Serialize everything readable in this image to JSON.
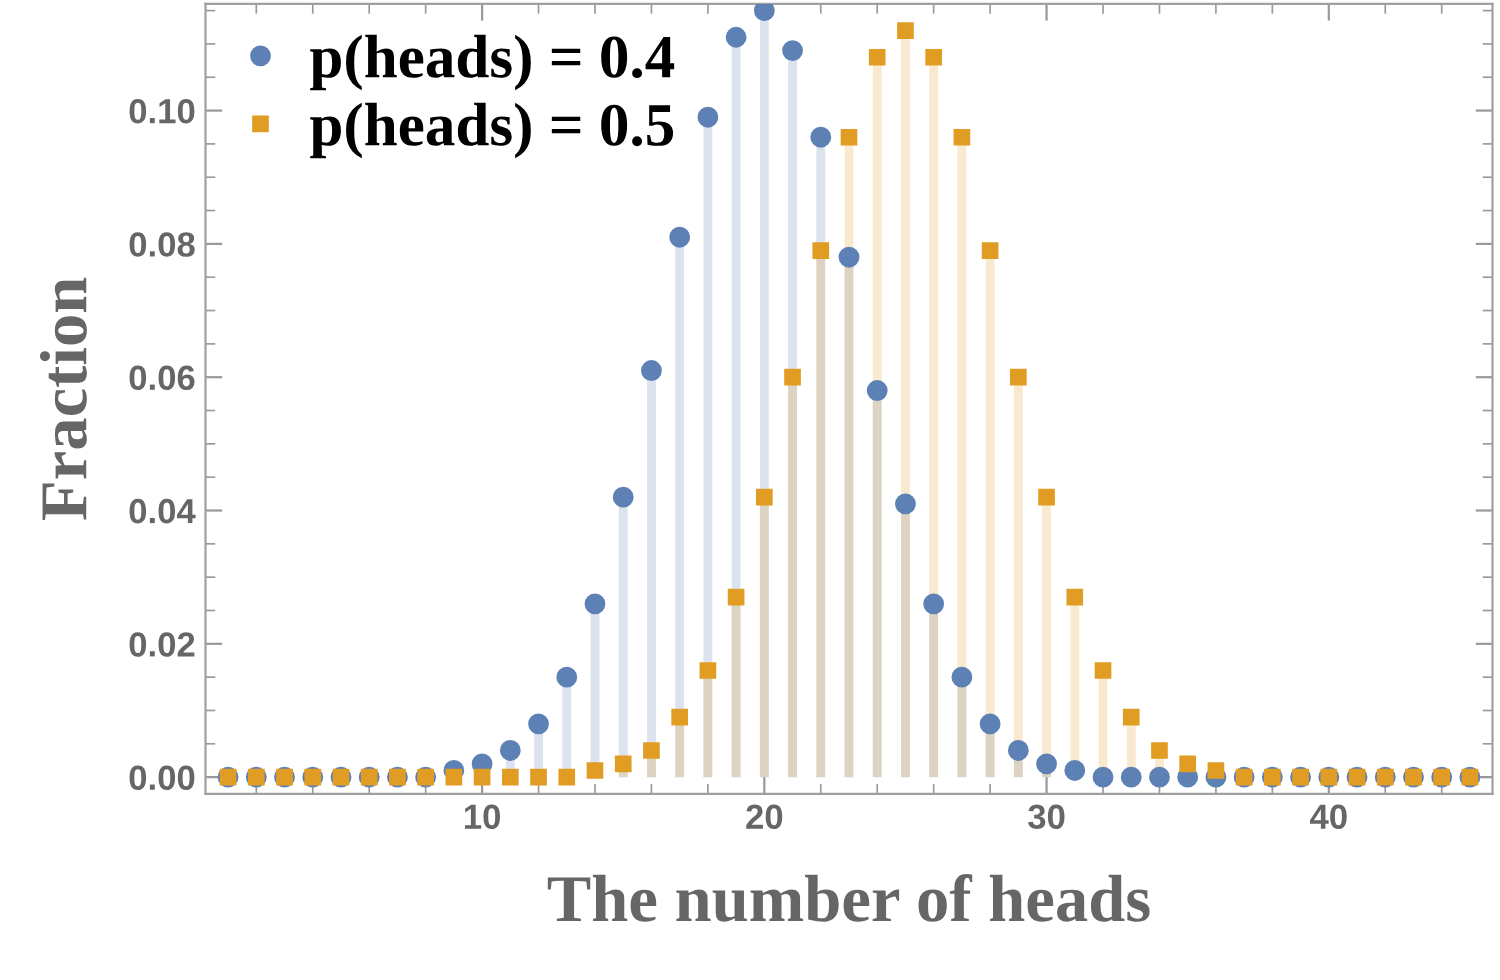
{
  "chart_data": {
    "type": "lollipop",
    "xlabel": "The number of heads",
    "ylabel": "Fraction",
    "xlim": [
      0.2,
      45.8
    ],
    "ylim": [
      -0.0025,
      0.116
    ],
    "xticks": [
      10,
      20,
      30,
      40
    ],
    "yticks": [
      {
        "value": 0,
        "label": "0.00"
      },
      {
        "value": 0.02,
        "label": "0.02"
      },
      {
        "value": 0.04,
        "label": "0.04"
      },
      {
        "value": 0.06,
        "label": "0.06"
      },
      {
        "value": 0.08,
        "label": "0.08"
      },
      {
        "value": 0.1,
        "label": "0.10"
      }
    ],
    "x": [
      1,
      2,
      3,
      4,
      5,
      6,
      7,
      8,
      9,
      10,
      11,
      12,
      13,
      14,
      15,
      16,
      17,
      18,
      19,
      20,
      21,
      22,
      23,
      24,
      25,
      26,
      27,
      28,
      29,
      30,
      31,
      32,
      33,
      34,
      35,
      36,
      37,
      38,
      39,
      40,
      41,
      42,
      43,
      44,
      45
    ],
    "legend": "top left",
    "grid": false,
    "series": [
      {
        "name": "p(heads) = 0.4",
        "color": "#5e81b5",
        "marker": "circle",
        "values": [
          0,
          0,
          0,
          0,
          0,
          0,
          0,
          0,
          0.001,
          0.002,
          0.004,
          0.008,
          0.015,
          0.026,
          0.042,
          0.061,
          0.081,
          0.099,
          0.111,
          0.115,
          0.109,
          0.096,
          0.078,
          0.058,
          0.041,
          0.026,
          0.015,
          0.008,
          0.004,
          0.002,
          0.001,
          0,
          0,
          0,
          0,
          0,
          0,
          0,
          0,
          0,
          0,
          0,
          0,
          0,
          0
        ]
      },
      {
        "name": "p(heads) = 0.5",
        "color": "#e19c24",
        "marker": "square",
        "values": [
          0,
          0,
          0,
          0,
          0,
          0,
          0,
          0,
          0,
          0,
          0,
          0,
          0,
          0.001,
          0.002,
          0.004,
          0.009,
          0.016,
          0.027,
          0.042,
          0.06,
          0.079,
          0.096,
          0.108,
          0.112,
          0.108,
          0.096,
          0.079,
          0.06,
          0.042,
          0.027,
          0.016,
          0.009,
          0.004,
          0.002,
          0.001,
          0,
          0,
          0,
          0,
          0,
          0,
          0,
          0,
          0
        ]
      }
    ]
  }
}
